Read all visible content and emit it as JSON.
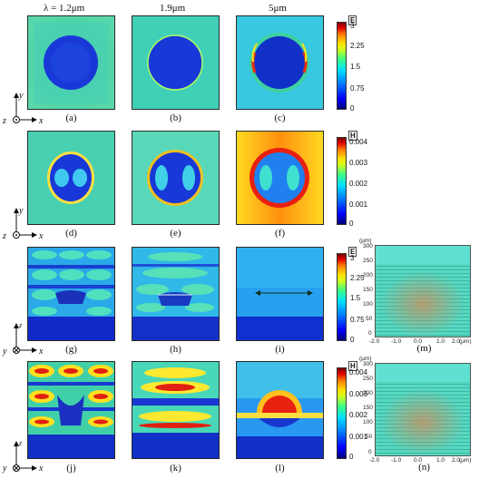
{
  "columns": [
    {
      "label": "λ = 1.2μm"
    },
    {
      "label": "1.9μm"
    },
    {
      "label": "5μm"
    }
  ],
  "panel_labels": [
    "(a)",
    "(b)",
    "(c)",
    "(d)",
    "(e)",
    "(f)",
    "(g)",
    "(h)",
    "(i)",
    "(j)",
    "(k)",
    "(l)",
    "(m)",
    "(n)"
  ],
  "colorbars": [
    {
      "title": "E",
      "ticks": [
        "3",
        "2.25",
        "1.5",
        "0.75",
        "0"
      ]
    },
    {
      "title": "H",
      "ticks": [
        "0.004",
        "0.003",
        "0.002",
        "0.001",
        "0"
      ]
    },
    {
      "title": "E",
      "ticks": [
        "3",
        "2.25",
        "1.5",
        "0.75",
        "0"
      ]
    },
    {
      "title": "H",
      "ticks": [
        "0.004",
        "0.003",
        "0.002",
        "0.001",
        "0"
      ]
    }
  ],
  "axes": {
    "top_view": {
      "vertical": "y",
      "horizontal": "x",
      "out": "z"
    },
    "side_view": {
      "vertical": "z",
      "horizontal": "x",
      "in": "y"
    }
  },
  "side_plots": {
    "y_ticks": [
      "300",
      "250",
      "200",
      "150",
      "100",
      "50",
      "0"
    ],
    "y_unit": "(μm)",
    "x_ticks": [
      "-2.0",
      "-1.0",
      "0.0",
      "1.0",
      "2.0"
    ],
    "x_unit": "(μm)"
  },
  "colors": {
    "field_bg": "#38d8c8",
    "field_low": "#1030e0",
    "field_high": "#e02010"
  }
}
